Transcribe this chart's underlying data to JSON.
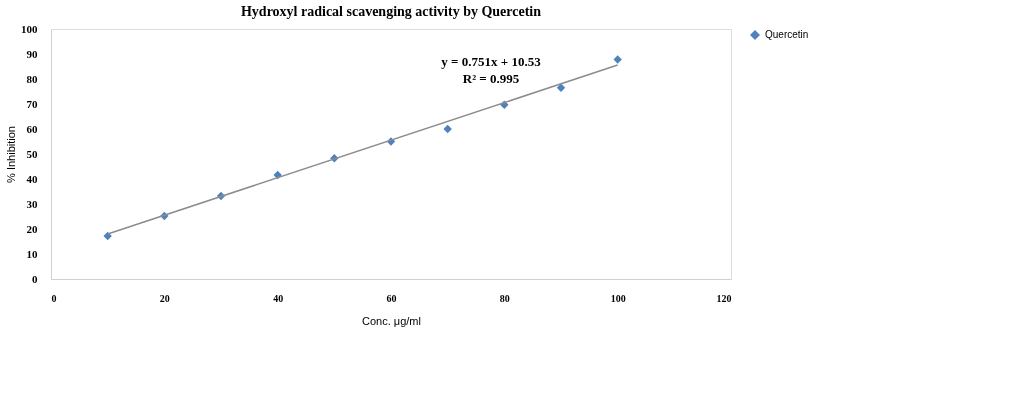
{
  "chart_data": {
    "type": "scatter",
    "title": "Hydroxyl radical scavenging activity by Quercetin",
    "xlabel": "Conc. μg/ml",
    "ylabel": "% Inhibition",
    "x": [
      10,
      20,
      30,
      40,
      50,
      60,
      70,
      80,
      90,
      100
    ],
    "series": [
      {
        "name": "Quercetin",
        "color": "#4f81bd",
        "values": [
          17.2,
          25.2,
          33.2,
          41.6,
          48.3,
          55,
          60,
          69.7,
          76.5,
          87.8
        ],
        "marker": "diamond"
      },
      {
        "type": "line",
        "color": "#8c8c8c",
        "x": [
          10,
          100
        ],
        "values": [
          18.0,
          85.6
        ],
        "marker": "none"
      }
    ],
    "annotations": [
      "y = 0.751x + 10.53",
      "R² = 0.995"
    ],
    "xlim": [
      0,
      120
    ],
    "xticks": [
      0,
      20,
      40,
      60,
      80,
      100,
      120
    ],
    "ylim": [
      0,
      100
    ],
    "yticks": [
      0,
      10,
      20,
      30,
      40,
      50,
      60,
      70,
      80,
      90,
      100
    ],
    "grid": false,
    "legend": "right"
  }
}
